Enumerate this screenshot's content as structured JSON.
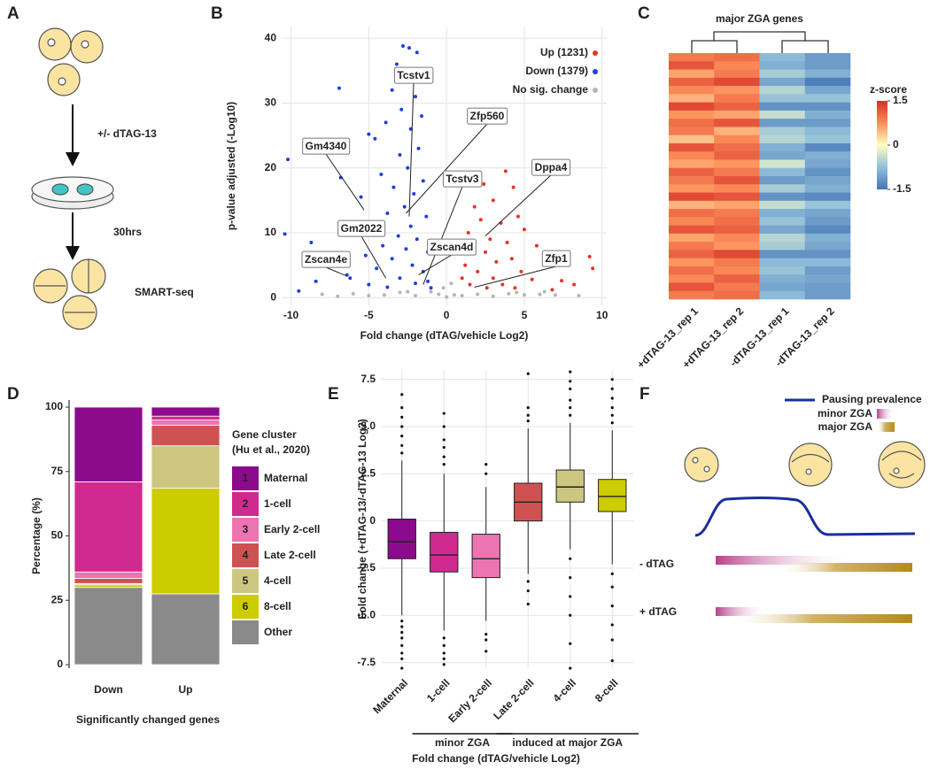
{
  "panel_letters": [
    "A",
    "B",
    "C",
    "D",
    "E",
    "F"
  ],
  "panel_a": {
    "treatment": "+/- dTAG-13",
    "time": "30hrs",
    "assay": "SMART-seq"
  },
  "panel_f": {
    "legend": [
      "Pausing prevalence",
      "minor ZGA",
      "major ZGA"
    ],
    "rows": [
      "- dTAG",
      "+ dTAG"
    ]
  },
  "chart_data": [
    {
      "type": "scatter",
      "xlabel": "Fold change (dTAG/vehicle Log2)",
      "ylabel": "p-value adjusted (-Log10)",
      "xlim": [
        -10.6,
        10.3
      ],
      "ylim": [
        -1.2,
        41.8
      ],
      "xticks": [
        -10,
        -5,
        0,
        5,
        10
      ],
      "yticks": [
        0,
        10,
        20,
        30,
        40
      ],
      "grid": true,
      "legend": "top-right",
      "series": [
        {
          "name": "Up (1231)",
          "color": "#e8302a",
          "x": [
            2.4,
            3.8,
            4.3,
            1.8,
            3,
            2.2,
            3.5,
            4.6,
            1.4,
            2.8,
            3.9,
            5,
            1.7,
            2.5,
            4.2,
            5.8,
            1.2,
            3.2,
            2,
            4.8,
            6.5,
            1,
            3,
            5.5,
            9.2,
            9.4,
            7.4,
            8.2,
            1.5,
            3.6,
            2.6,
            6.8,
            4.4
          ],
          "values": [
            17.5,
            19.5,
            17,
            14,
            15,
            12,
            11.5,
            12.5,
            10,
            9,
            8.5,
            10.5,
            7.5,
            7,
            6,
            8,
            5,
            5.5,
            4,
            4,
            5,
            3,
            3,
            2.8,
            6.3,
            4.5,
            2.6,
            2,
            2,
            2,
            1.5,
            1.2,
            1.5
          ]
        },
        {
          "name": "Down (1379)",
          "color": "#1f3de0",
          "x": [
            -2.4,
            -2.8,
            -1.9,
            -3.2,
            -2.6,
            -2.2,
            -1.7,
            -3.5,
            -6.9,
            -2,
            -2.9,
            -1.6,
            -3.9,
            -2.3,
            -5,
            -4.6,
            -10.2,
            -1.8,
            -3,
            -2.5,
            -4.2,
            -6.8,
            -1.5,
            -3.4,
            -2.1,
            -5.5,
            -2.7,
            -3.8,
            -1.3,
            -4.8,
            -2.3,
            -6,
            -3.1,
            -1.9,
            -8.7,
            -4.1,
            -2.6,
            -1.2,
            -5.2,
            -3.5,
            -7.2,
            -2.2,
            -4.5,
            -1.5,
            -6.4,
            -3,
            -8.4,
            -2,
            -5,
            -1,
            -3.8,
            -9.5,
            -10.4,
            -6.2,
            -1.2
          ],
          "values": [
            38.5,
            38.8,
            37.8,
            36,
            35,
            34,
            33.5,
            32,
            32.3,
            31,
            29,
            28,
            27,
            26,
            25.2,
            24.5,
            21.3,
            23,
            22,
            20,
            19,
            18.5,
            18,
            17,
            16,
            15.5,
            14,
            13,
            12.5,
            11.5,
            11,
            10,
            9.5,
            9,
            8.5,
            8,
            7.5,
            7,
            6.5,
            6,
            5.5,
            5,
            4.5,
            4,
            3.5,
            3,
            2.5,
            2.2,
            2,
            1.5,
            1.6,
            1,
            9.8,
            3,
            2.5
          ]
        },
        {
          "name": "No sig. change",
          "color": "#b5b5b5",
          "x": [
            -6,
            -4,
            -2,
            0,
            0.5,
            -0.5,
            1,
            2,
            3,
            4,
            5,
            6,
            7,
            -1,
            -3,
            -5,
            -7,
            -8,
            8.5,
            -0.2,
            0.3,
            -2.5,
            4.5,
            6.3
          ],
          "values": [
            0.6,
            0.4,
            0.3,
            0.1,
            0.4,
            0.5,
            0.3,
            0.5,
            0.2,
            0.6,
            0.4,
            0.5,
            0.4,
            0.9,
            0.8,
            0.3,
            0.2,
            0.5,
            0.3,
            1.5,
            2.2,
            0.9,
            0.8,
            0.9
          ]
        }
      ],
      "annotations": [
        {
          "text": "Tcstv1",
          "x": -2.4,
          "y": 12.5
        },
        {
          "text": "Zfp560",
          "x": -2.6,
          "y": 13
        },
        {
          "text": "Gm4340",
          "x": -5.3,
          "y": 13.5
        },
        {
          "text": "Tcstv3",
          "x": -1.5,
          "y": 2
        },
        {
          "text": "Dppa4",
          "x": 2.5,
          "y": 9.5
        },
        {
          "text": "Gm2022",
          "x": -3.9,
          "y": 3
        },
        {
          "text": "Zscan4d",
          "x": -1.8,
          "y": 3.5
        },
        {
          "text": "Zscan4e",
          "x": -6.4,
          "y": 3.3
        },
        {
          "text": "Zfp1",
          "x": 1.8,
          "y": 1.6
        }
      ]
    },
    {
      "type": "heatmap",
      "title": "major ZGA genes",
      "columns": [
        "+dTAG-13_rep 1",
        "+dTAG-13_rep 2",
        "-dTAG-13_rep 1",
        "-dTAG-13_rep 2"
      ],
      "colorbar_title": "z-score",
      "clim": [
        -1.5,
        1.5
      ],
      "cticks": [
        1.5,
        0,
        -1.5
      ],
      "colormap": [
        "#4575b4",
        "#91bfdb",
        "#ffffbf",
        "#fc8d59",
        "#d73027"
      ],
      "values": [
        [
          0.9,
          1.0,
          -0.8,
          -1.1
        ],
        [
          1.2,
          0.8,
          -0.9,
          -1.1
        ],
        [
          0.6,
          0.9,
          -0.6,
          -0.9
        ],
        [
          1.1,
          1.3,
          -1.0,
          -1.4
        ],
        [
          0.8,
          0.7,
          -0.5,
          -1.0
        ],
        [
          0.5,
          0.9,
          -0.7,
          -0.7
        ],
        [
          1.3,
          1.1,
          -1.2,
          -1.2
        ],
        [
          0.7,
          0.6,
          -0.4,
          -0.9
        ],
        [
          1.0,
          1.2,
          -1.1,
          -1.1
        ],
        [
          0.9,
          0.5,
          -0.6,
          -0.8
        ],
        [
          0.4,
          0.8,
          -0.5,
          -0.7
        ],
        [
          1.2,
          1.0,
          -0.9,
          -1.3
        ],
        [
          0.8,
          1.1,
          -1.0,
          -0.9
        ],
        [
          0.6,
          0.7,
          -0.3,
          -1.0
        ],
        [
          1.1,
          0.9,
          -0.8,
          -1.2
        ],
        [
          0.9,
          1.2,
          -1.1,
          -1.0
        ],
        [
          0.7,
          0.8,
          -0.6,
          -0.9
        ],
        [
          1.3,
          1.2,
          -1.2,
          -1.3
        ],
        [
          0.5,
          0.6,
          -0.4,
          -0.7
        ],
        [
          1.0,
          0.9,
          -0.9,
          -1.0
        ],
        [
          0.8,
          1.0,
          -0.7,
          -1.1
        ],
        [
          1.2,
          1.1,
          -1.0,
          -1.3
        ],
        [
          0.6,
          0.8,
          -0.5,
          -0.9
        ],
        [
          0.9,
          0.7,
          -0.6,
          -1.0
        ],
        [
          1.1,
          1.3,
          -1.2,
          -1.2
        ],
        [
          0.7,
          0.9,
          -0.8,
          -0.8
        ],
        [
          1.0,
          0.8,
          -0.7,
          -1.1
        ],
        [
          0.8,
          1.1,
          -0.9,
          -1.0
        ],
        [
          1.2,
          0.9,
          -1.0,
          -1.1
        ],
        [
          0.9,
          1.0,
          -0.8,
          -1.1
        ]
      ]
    },
    {
      "type": "stacked_bar",
      "xlabel": "Significantly changed genes",
      "ylabel": "Percentage (%)",
      "legend_title": [
        "Gene cluster",
        "(Hu et al., 2020)"
      ],
      "legend": "right",
      "categories": [
        "Down",
        "Up"
      ],
      "ylim": [
        0,
        100
      ],
      "yticks": [
        0,
        25,
        50,
        75,
        100
      ],
      "series": [
        {
          "number": "1",
          "name": "Maternal",
          "color": "#8c0a8c",
          "values": [
            29,
            3.5
          ]
        },
        {
          "number": "2",
          "name": "1-cell",
          "color": "#d12a8f",
          "values": [
            35,
            1.5
          ]
        },
        {
          "number": "3",
          "name": "Early 2-cell",
          "color": "#ec74b0",
          "values": [
            2.5,
            2
          ]
        },
        {
          "number": "4",
          "name": "Late 2-cell",
          "color": "#cf5252",
          "values": [
            2,
            8
          ]
        },
        {
          "number": "5",
          "name": "4-cell",
          "color": "#ccc680",
          "values": [
            0.5,
            16.5
          ]
        },
        {
          "number": "6",
          "name": "8-cell",
          "color": "#cccc00",
          "values": [
            1,
            41
          ]
        },
        {
          "name": "Other",
          "color": "#8a8a8a",
          "values": [
            30,
            27.5
          ]
        }
      ]
    },
    {
      "type": "box",
      "xlabel": "Fold change (dTAG/vehicle Log2)",
      "ylabel": "Fold change (+dTAG-13/-dTAG-13 Log2)",
      "categories": [
        "Maternal",
        "1-cell",
        "Early 2-cell",
        "Late 2-cell",
        "4-cell",
        "8-cell"
      ],
      "colors": [
        "#8c0a8c",
        "#d12a8f",
        "#ec74b0",
        "#cf5252",
        "#ccc680",
        "#cccc00"
      ],
      "groups": [
        {
          "label": "minor ZGA",
          "from": 1,
          "to": 2
        },
        {
          "label": "induced at major ZGA",
          "from": 3,
          "to": 5
        }
      ],
      "ylim": [
        -7.8,
        8
      ],
      "yticks": [
        -7.5,
        {
          "value": -5,
          "label": "-5.0"
        },
        -2.5,
        0,
        2.5,
        {
          "value": 5,
          "label": "5.0"
        },
        7.5
      ],
      "grid": true,
      "whisker_low": [
        -5,
        -5.8,
        -5.3,
        -2.8,
        -1.5,
        -2.3
      ],
      "q1": [
        -2,
        -2.7,
        -3,
        0,
        1,
        0.5
      ],
      "median": [
        -1.1,
        -1.8,
        -2,
        1,
        1.8,
        1.3
      ],
      "q3": [
        0.1,
        -0.6,
        -0.7,
        2,
        2.7,
        2.2
      ],
      "whisker_high": [
        3.2,
        2.5,
        1.8,
        4.9,
        5.2,
        4.8
      ],
      "outliers": [
        [
          -5.3,
          -5.6,
          -5.9,
          -6.2,
          -6.6,
          -7,
          -7.3,
          -7.8,
          3.6,
          4,
          4.5,
          5,
          5.5,
          6,
          6.7
        ],
        [
          -6.2,
          -6.6,
          -7,
          -7.3,
          -7.6,
          3,
          3.4,
          3.9,
          4.3,
          5,
          5.7
        ],
        [
          -6,
          -6.3,
          -6.9,
          2.5,
          3
        ],
        [
          -3.2,
          -3.7,
          -4.4,
          5.3,
          5.6,
          6,
          7.8
        ],
        [
          -2,
          -3,
          -4,
          -5,
          -6.5,
          -7.8,
          5.6,
          6,
          6.4,
          7,
          7.4,
          7.9
        ],
        [
          -2.8,
          -3.5,
          -4.5,
          -5.5,
          -6.3,
          -7.4,
          5.2,
          5.6,
          6,
          6.5,
          7,
          7.5
        ]
      ]
    }
  ]
}
